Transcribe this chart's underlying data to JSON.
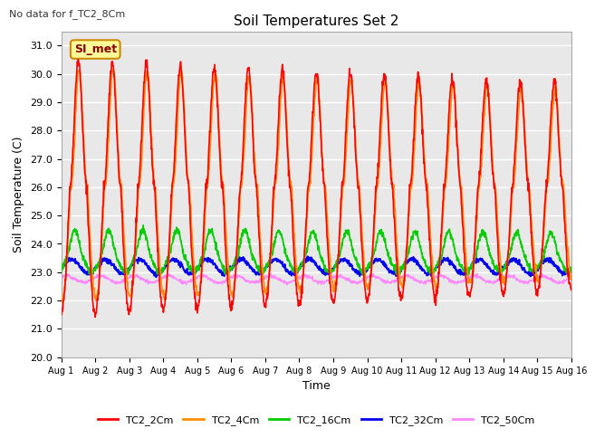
{
  "title": "Soil Temperatures Set 2",
  "no_data_text": "No data for f_TC2_8Cm",
  "annotation_text": "SI_met",
  "xlabel": "Time",
  "ylabel": "Soil Temperature (C)",
  "ylim": [
    20.0,
    31.5
  ],
  "yticks": [
    20.0,
    21.0,
    22.0,
    23.0,
    24.0,
    25.0,
    26.0,
    27.0,
    28.0,
    29.0,
    30.0,
    31.0
  ],
  "legend_labels": [
    "TC2_2Cm",
    "TC2_4Cm",
    "TC2_16Cm",
    "TC2_32Cm",
    "TC2_50Cm"
  ],
  "legend_colors": [
    "#ff0000",
    "#ff8c00",
    "#00cc00",
    "#0000ee",
    "#ff88ff"
  ],
  "xtick_labels": [
    "Aug 1",
    "Aug 2",
    "Aug 3",
    "Aug 4",
    "Aug 5",
    "Aug 6",
    "Aug 7",
    "Aug 8",
    "Aug 9",
    "Aug 10",
    "Aug 11",
    "Aug 12",
    "Aug 13",
    "Aug 14",
    "Aug 15",
    "Aug 16"
  ],
  "bg_color": "#e8e8e8",
  "grid_color": "#ffffff",
  "annotation_bg": "#ffff99",
  "annotation_border": "#cc8800"
}
